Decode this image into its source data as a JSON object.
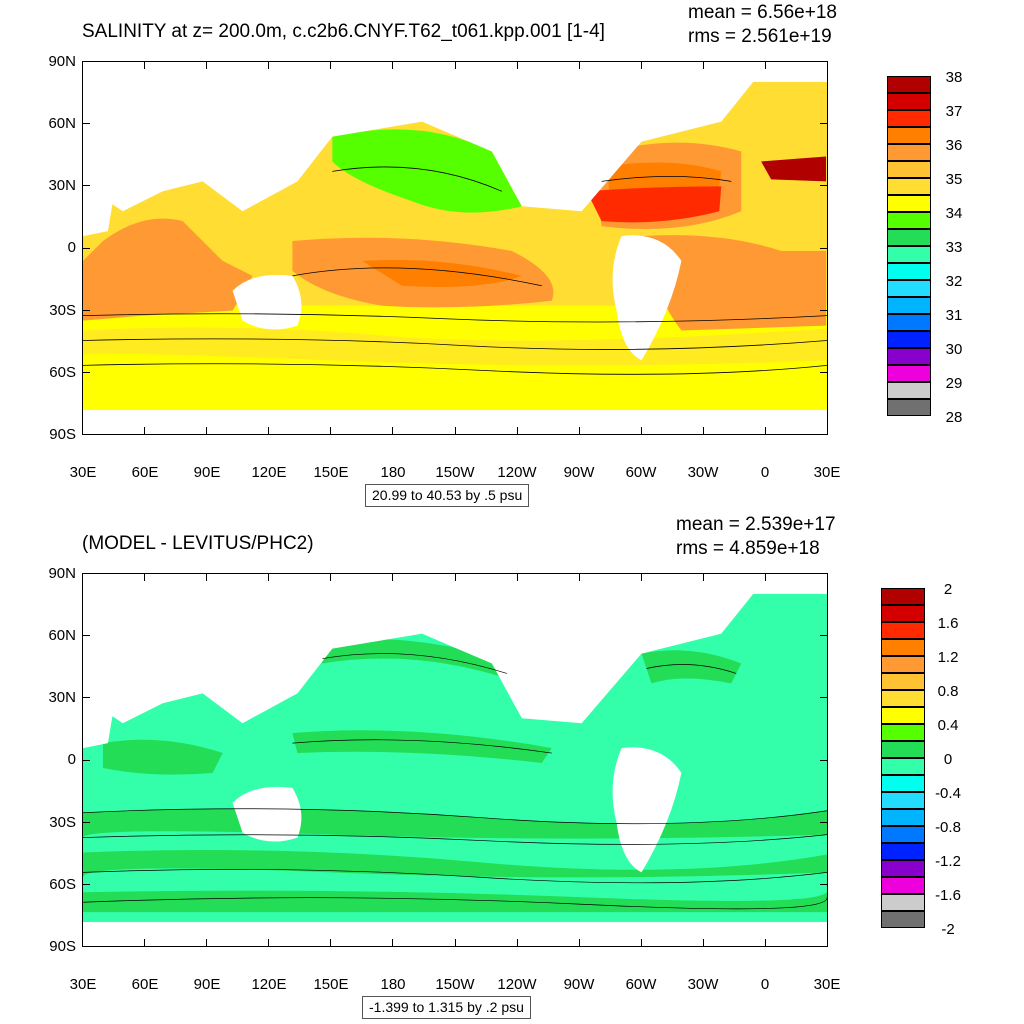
{
  "panels": [
    {
      "title": "SALINITY at z= 200.0m, c.c2b6.CNYF.T62_t061.kpp.001 [1-4]",
      "stat_mean": "mean = 6.56e+18",
      "stat_rms": "rms = 2.561e+19",
      "range_label": "20.99 to 40.53 by .5 psu",
      "colorbar_labels": [
        "38",
        "37",
        "36",
        "35",
        "34",
        "33",
        "32",
        "31",
        "30",
        "29",
        "28"
      ],
      "colorbar_colors": [
        "#b00000",
        "#d40000",
        "#ff2a00",
        "#ff7f00",
        "#ff9933",
        "#ffc233",
        "#ffdd33",
        "#ffff00",
        "#55ff00",
        "#22dd55",
        "#33ffaa",
        "#00ffee",
        "#22ddff",
        "#00b4ff",
        "#0078ff",
        "#0022ff",
        "#8800cc",
        "#ee00dd",
        "#cccccc",
        "#707070"
      ]
    },
    {
      "title": "(MODEL - LEVITUS/PHC2)",
      "stat_mean": "mean = 2.539e+17",
      "stat_rms": "rms = 4.859e+18",
      "range_label": "-1.399 to 1.315 by .2 psu",
      "colorbar_labels": [
        "2",
        "1.6",
        "1.2",
        "0.8",
        "0.4",
        "0",
        "-0.4",
        "-0.8",
        "-1.2",
        "-1.6",
        "-2"
      ],
      "colorbar_colors": [
        "#b00000",
        "#d40000",
        "#ff2a00",
        "#ff7f00",
        "#ff9933",
        "#ffc233",
        "#ffdd33",
        "#ffff00",
        "#55ff00",
        "#22dd55",
        "#33ffaa",
        "#00ffee",
        "#22ddff",
        "#00b4ff",
        "#0078ff",
        "#0022ff",
        "#8800cc",
        "#ee00dd",
        "#cccccc",
        "#707070"
      ]
    }
  ],
  "lat_labels": [
    "90N",
    "60N",
    "30N",
    "0",
    "30S",
    "60S",
    "90S"
  ],
  "lon_labels": [
    "30E",
    "60E",
    "90E",
    "120E",
    "150E",
    "180",
    "150W",
    "120W",
    "90W",
    "60W",
    "30W",
    "0",
    "30E"
  ],
  "colors": {
    "panel1_fill": "#ffdd33",
    "panel1_south": "#ffff00",
    "panel1_subtropics": "#ff9933",
    "panel1_atlantic_core": "#ff2a00",
    "panel1_npacific": "#55ff00",
    "panel2_fill": "#33ffaa",
    "panel2_bands": "#22dd55"
  }
}
